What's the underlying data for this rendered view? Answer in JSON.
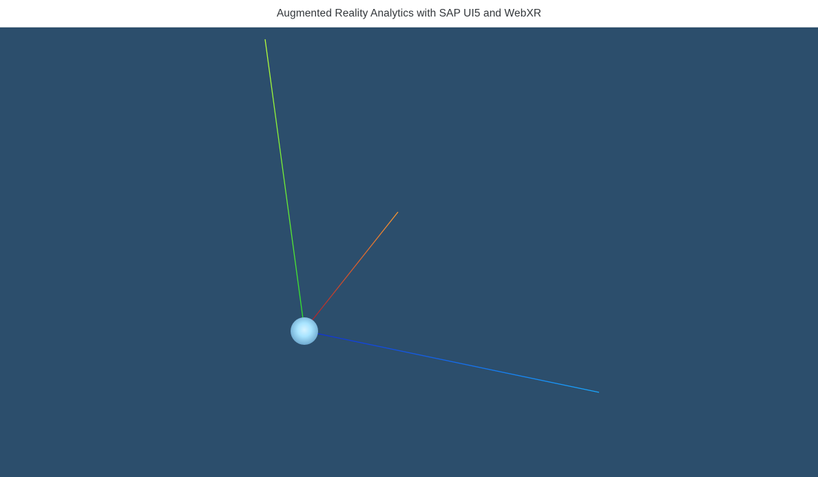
{
  "app": {
    "title": "Augmented Reality Analytics with SAP UI5 and WebXR"
  },
  "scene": {
    "background_color": "#2c4e6c",
    "axes": [
      {
        "name": "y-axis",
        "start_color": "#2ee02e",
        "end_color": "#b9ff3a"
      },
      {
        "name": "x-axis",
        "start_color": "#b0202a",
        "end_color": "#ff9a30"
      },
      {
        "name": "z-axis",
        "start_color": "#1030d8",
        "end_color": "#1aa8ff"
      }
    ],
    "origin_marker": {
      "name": "origin-sphere",
      "color": "#a8e4ff"
    }
  }
}
